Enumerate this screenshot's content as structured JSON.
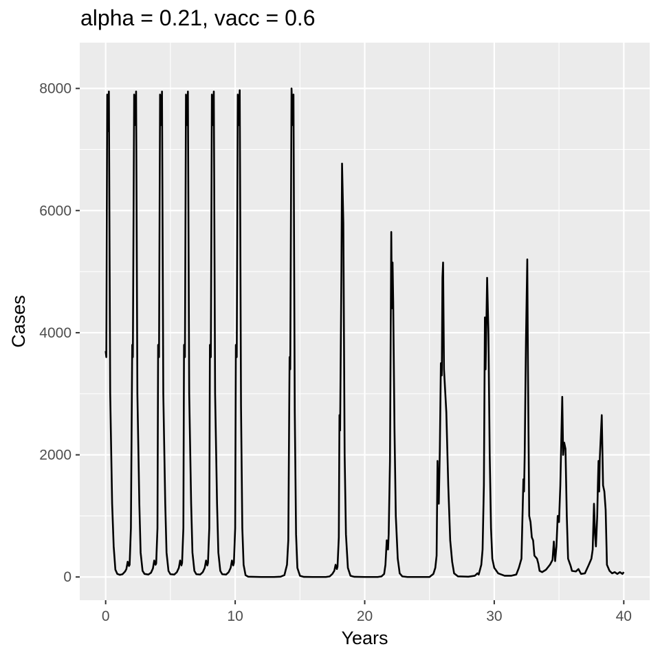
{
  "chart_data": {
    "type": "line",
    "title": "alpha = 0.21, vacc = 0.6",
    "xlabel": "Years",
    "ylabel": "Cases",
    "xlim": [
      -2,
      42
    ],
    "ylim": [
      -380,
      8750
    ],
    "x_ticks": [
      0,
      10,
      20,
      30,
      40
    ],
    "y_ticks": [
      0,
      2000,
      4000,
      6000,
      8000
    ],
    "grid": true,
    "legend": "none",
    "colors": {
      "panel": "#ebebeb",
      "grid": "#ffffff",
      "line": "#000000"
    },
    "series": [
      {
        "points": [
          [
            0.0,
            3700
          ],
          [
            0.05,
            3600
          ],
          [
            0.12,
            7900
          ],
          [
            0.18,
            7300
          ],
          [
            0.25,
            7950
          ],
          [
            0.35,
            3000
          ],
          [
            0.5,
            1200
          ],
          [
            0.62,
            500
          ],
          [
            0.75,
            120
          ],
          [
            0.9,
            50
          ],
          [
            1.1,
            35
          ],
          [
            1.3,
            45
          ],
          [
            1.5,
            90
          ],
          [
            1.6,
            130
          ],
          [
            1.7,
            250
          ],
          [
            1.8,
            180
          ],
          [
            1.85,
            200
          ],
          [
            1.95,
            800
          ],
          [
            2.05,
            3800
          ],
          [
            2.1,
            3600
          ],
          [
            2.2,
            7900
          ],
          [
            2.3,
            7400
          ],
          [
            2.35,
            7950
          ],
          [
            2.45,
            3000
          ],
          [
            2.6,
            1200
          ],
          [
            2.7,
            400
          ],
          [
            2.85,
            100
          ],
          [
            3.0,
            50
          ],
          [
            3.3,
            40
          ],
          [
            3.5,
            70
          ],
          [
            3.65,
            140
          ],
          [
            3.75,
            270
          ],
          [
            3.85,
            200
          ],
          [
            3.9,
            220
          ],
          [
            4.0,
            800
          ],
          [
            4.05,
            3800
          ],
          [
            4.12,
            3600
          ],
          [
            4.2,
            7900
          ],
          [
            4.28,
            7400
          ],
          [
            4.35,
            7950
          ],
          [
            4.45,
            3000
          ],
          [
            4.6,
            1200
          ],
          [
            4.7,
            400
          ],
          [
            4.85,
            100
          ],
          [
            5.0,
            45
          ],
          [
            5.3,
            40
          ],
          [
            5.5,
            80
          ],
          [
            5.65,
            150
          ],
          [
            5.75,
            270
          ],
          [
            5.85,
            190
          ],
          [
            5.9,
            230
          ],
          [
            6.0,
            800
          ],
          [
            6.05,
            3800
          ],
          [
            6.12,
            3600
          ],
          [
            6.2,
            7900
          ],
          [
            6.28,
            7400
          ],
          [
            6.35,
            7950
          ],
          [
            6.45,
            3000
          ],
          [
            6.6,
            1200
          ],
          [
            6.7,
            400
          ],
          [
            6.85,
            100
          ],
          [
            7.0,
            45
          ],
          [
            7.3,
            40
          ],
          [
            7.5,
            80
          ],
          [
            7.65,
            150
          ],
          [
            7.75,
            270
          ],
          [
            7.85,
            190
          ],
          [
            7.9,
            230
          ],
          [
            8.0,
            800
          ],
          [
            8.05,
            3800
          ],
          [
            8.12,
            3600
          ],
          [
            8.2,
            7900
          ],
          [
            8.28,
            7400
          ],
          [
            8.35,
            7950
          ],
          [
            8.45,
            3000
          ],
          [
            8.6,
            1200
          ],
          [
            8.7,
            400
          ],
          [
            8.85,
            100
          ],
          [
            9.0,
            45
          ],
          [
            9.3,
            40
          ],
          [
            9.5,
            80
          ],
          [
            9.65,
            150
          ],
          [
            9.75,
            270
          ],
          [
            9.85,
            190
          ],
          [
            9.9,
            230
          ],
          [
            10.0,
            800
          ],
          [
            10.05,
            3800
          ],
          [
            10.12,
            3600
          ],
          [
            10.2,
            7900
          ],
          [
            10.28,
            7400
          ],
          [
            10.35,
            7970
          ],
          [
            10.45,
            2800
          ],
          [
            10.55,
            800
          ],
          [
            10.65,
            200
          ],
          [
            10.8,
            30
          ],
          [
            11.0,
            5
          ],
          [
            12.0,
            0
          ],
          [
            13.0,
            0
          ],
          [
            13.5,
            5
          ],
          [
            13.8,
            30
          ],
          [
            14.0,
            200
          ],
          [
            14.1,
            600
          ],
          [
            14.2,
            3600
          ],
          [
            14.25,
            3400
          ],
          [
            14.35,
            8000
          ],
          [
            14.45,
            7400
          ],
          [
            14.5,
            7900
          ],
          [
            14.6,
            2700
          ],
          [
            14.7,
            700
          ],
          [
            14.8,
            150
          ],
          [
            15.0,
            20
          ],
          [
            15.3,
            2
          ],
          [
            16.0,
            0
          ],
          [
            17.0,
            0
          ],
          [
            17.3,
            10
          ],
          [
            17.5,
            50
          ],
          [
            17.65,
            100
          ],
          [
            17.75,
            200
          ],
          [
            17.85,
            130
          ],
          [
            17.9,
            170
          ],
          [
            18.0,
            650
          ],
          [
            18.05,
            2650
          ],
          [
            18.1,
            2400
          ],
          [
            18.2,
            5000
          ],
          [
            18.25,
            6770
          ],
          [
            18.35,
            5800
          ],
          [
            18.45,
            2000
          ],
          [
            18.55,
            700
          ],
          [
            18.7,
            150
          ],
          [
            18.9,
            20
          ],
          [
            19.2,
            3
          ],
          [
            20.0,
            0
          ],
          [
            21.0,
            0
          ],
          [
            21.3,
            10
          ],
          [
            21.5,
            50
          ],
          [
            21.6,
            200
          ],
          [
            21.7,
            600
          ],
          [
            21.8,
            450
          ],
          [
            21.85,
            700
          ],
          [
            21.95,
            1900
          ],
          [
            22.05,
            5650
          ],
          [
            22.1,
            4400
          ],
          [
            22.15,
            5150
          ],
          [
            22.2,
            4500
          ],
          [
            22.3,
            2400
          ],
          [
            22.4,
            1000
          ],
          [
            22.55,
            300
          ],
          [
            22.7,
            60
          ],
          [
            22.9,
            10
          ],
          [
            23.3,
            0
          ],
          [
            25.0,
            0
          ],
          [
            25.3,
            50
          ],
          [
            25.45,
            150
          ],
          [
            25.55,
            350
          ],
          [
            25.62,
            1900
          ],
          [
            25.68,
            1300
          ],
          [
            25.72,
            1200
          ],
          [
            25.8,
            2100
          ],
          [
            25.88,
            3500
          ],
          [
            25.95,
            3300
          ],
          [
            26.0,
            4900
          ],
          [
            26.05,
            5150
          ],
          [
            26.12,
            3400
          ],
          [
            26.3,
            2700
          ],
          [
            26.45,
            1500
          ],
          [
            26.6,
            600
          ],
          [
            26.75,
            250
          ],
          [
            26.9,
            60
          ],
          [
            27.2,
            10
          ],
          [
            28.0,
            5
          ],
          [
            28.5,
            20
          ],
          [
            28.7,
            60
          ],
          [
            28.8,
            40
          ],
          [
            29.0,
            200
          ],
          [
            29.1,
            450
          ],
          [
            29.2,
            1500
          ],
          [
            29.28,
            4250
          ],
          [
            29.33,
            3400
          ],
          [
            29.38,
            4000
          ],
          [
            29.45,
            4900
          ],
          [
            29.55,
            4000
          ],
          [
            29.65,
            2000
          ],
          [
            29.75,
            800
          ],
          [
            29.85,
            300
          ],
          [
            30.0,
            150
          ],
          [
            30.3,
            60
          ],
          [
            30.8,
            20
          ],
          [
            31.3,
            20
          ],
          [
            31.7,
            40
          ],
          [
            31.9,
            150
          ],
          [
            32.1,
            300
          ],
          [
            32.25,
            1600
          ],
          [
            32.3,
            1400
          ],
          [
            32.35,
            2000
          ],
          [
            32.45,
            3900
          ],
          [
            32.55,
            5200
          ],
          [
            32.6,
            3500
          ],
          [
            32.7,
            1000
          ],
          [
            32.8,
            900
          ],
          [
            32.9,
            650
          ],
          [
            33.0,
            600
          ],
          [
            33.1,
            350
          ],
          [
            33.3,
            300
          ],
          [
            33.4,
            220
          ],
          [
            33.5,
            100
          ],
          [
            33.7,
            80
          ],
          [
            34.0,
            120
          ],
          [
            34.3,
            200
          ],
          [
            34.5,
            280
          ],
          [
            34.6,
            580
          ],
          [
            34.7,
            260
          ],
          [
            34.8,
            500
          ],
          [
            34.9,
            1000
          ],
          [
            35.0,
            900
          ],
          [
            35.1,
            1500
          ],
          [
            35.25,
            2950
          ],
          [
            35.32,
            2000
          ],
          [
            35.4,
            2200
          ],
          [
            35.5,
            2100
          ],
          [
            35.6,
            1000
          ],
          [
            35.7,
            300
          ],
          [
            35.9,
            180
          ],
          [
            36.0,
            100
          ],
          [
            36.3,
            90
          ],
          [
            36.5,
            130
          ],
          [
            36.7,
            50
          ],
          [
            37.0,
            60
          ],
          [
            37.3,
            200
          ],
          [
            37.5,
            300
          ],
          [
            37.6,
            450
          ],
          [
            37.7,
            1200
          ],
          [
            37.78,
            700
          ],
          [
            37.85,
            500
          ],
          [
            37.95,
            1000
          ],
          [
            38.0,
            1500
          ],
          [
            38.05,
            1900
          ],
          [
            38.1,
            1400
          ],
          [
            38.15,
            1950
          ],
          [
            38.3,
            2650
          ],
          [
            38.4,
            1500
          ],
          [
            38.5,
            1400
          ],
          [
            38.6,
            1100
          ],
          [
            38.7,
            200
          ],
          [
            38.9,
            100
          ],
          [
            39.1,
            60
          ],
          [
            39.3,
            80
          ],
          [
            39.5,
            50
          ],
          [
            39.7,
            80
          ],
          [
            39.9,
            50
          ],
          [
            40.0,
            80
          ]
        ]
      }
    ]
  }
}
